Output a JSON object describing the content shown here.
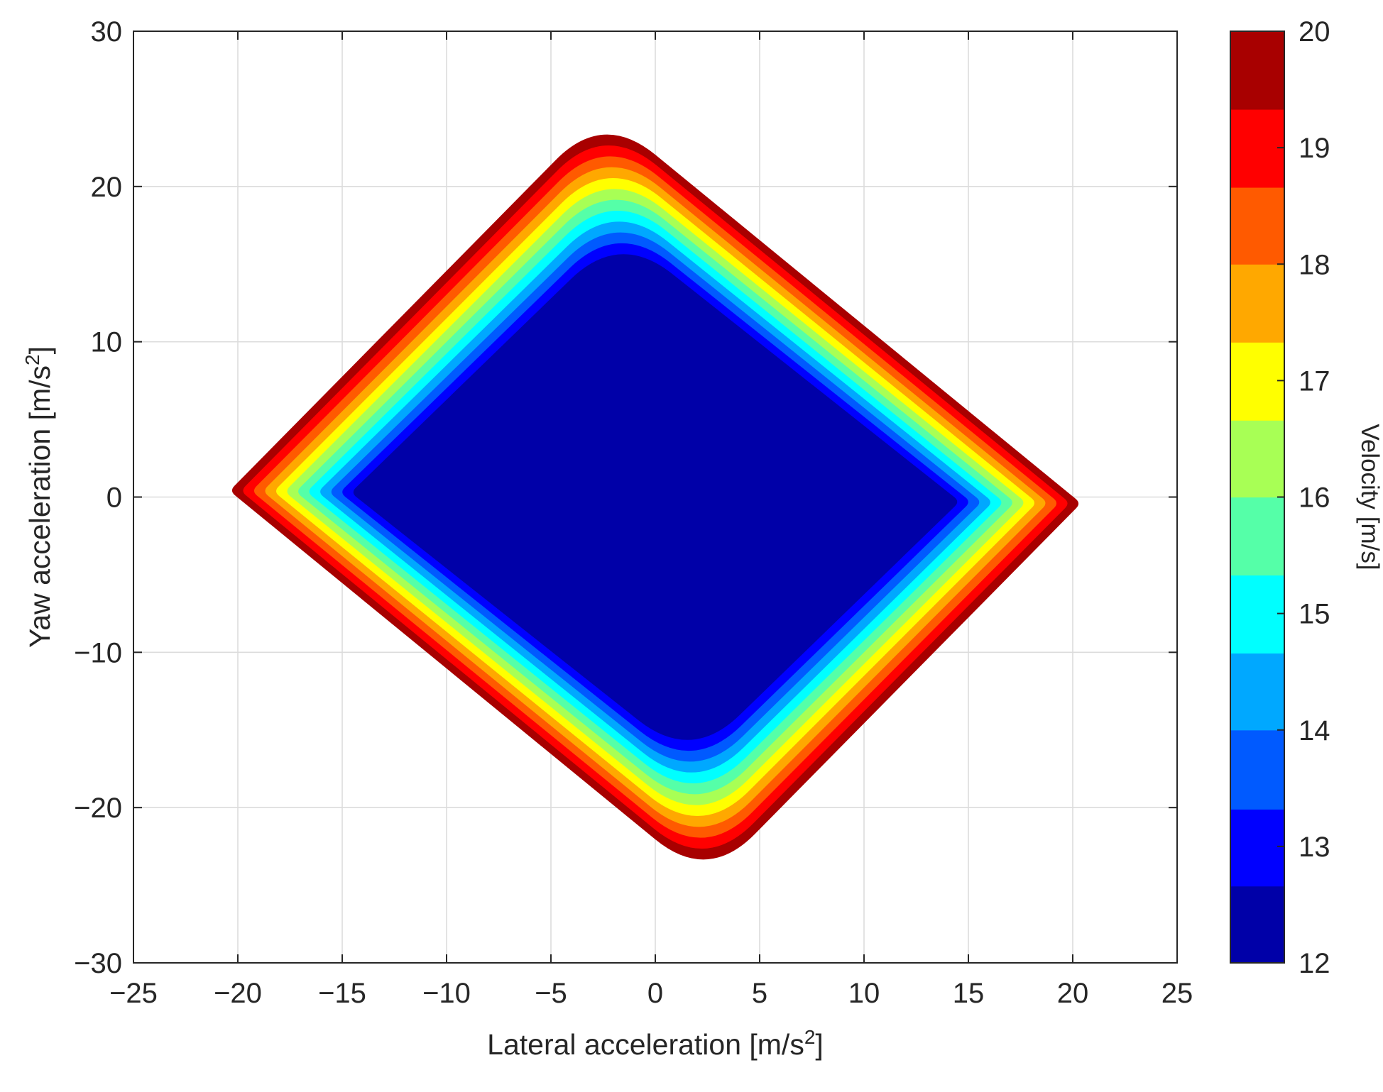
{
  "chart_data": {
    "type": "heatmap",
    "description_free": true,
    "xlabel": "Lateral acceleration [m/s",
    "xlabel_sup": "2",
    "xlabel_end": "]",
    "ylabel": "Yaw acceleration [m/s",
    "ylabel_sup": "2",
    "ylabel_end": "]",
    "xlim": [
      -25,
      25
    ],
    "ylim": [
      -30,
      30
    ],
    "x_ticks": [
      -25,
      -20,
      -15,
      -10,
      -5,
      0,
      5,
      10,
      15,
      20,
      25
    ],
    "x_tick_labels": [
      "−25",
      "−20",
      "−15",
      "−10",
      "−5",
      "0",
      "5",
      "10",
      "15",
      "20",
      "25"
    ],
    "y_ticks": [
      -30,
      -20,
      -10,
      0,
      10,
      20,
      30
    ],
    "y_tick_labels": [
      "−30",
      "−20",
      "−10",
      "0",
      "10",
      "20",
      "30"
    ],
    "grid": true,
    "colorbar": {
      "label": "Velocity [m/s]",
      "range": [
        12,
        20
      ],
      "ticks": [
        12,
        13,
        14,
        15,
        16,
        17,
        18,
        19,
        20
      ],
      "tick_labels": [
        "12",
        "13",
        "14",
        "15",
        "16",
        "17",
        "18",
        "19",
        "20"
      ],
      "levels": [
        {
          "from": 12.0,
          "to": 12.66,
          "color": "#0000a8"
        },
        {
          "from": 12.66,
          "to": 13.32,
          "color": "#0000ff"
        },
        {
          "from": 13.32,
          "to": 14.0,
          "color": "#005aff"
        },
        {
          "from": 14.0,
          "to": 14.66,
          "color": "#00a8ff"
        },
        {
          "from": 14.66,
          "to": 15.33,
          "color": "#00ffff"
        },
        {
          "from": 15.33,
          "to": 16.0,
          "color": "#55ffa8"
        },
        {
          "from": 16.0,
          "to": 16.66,
          "color": "#a8ff55"
        },
        {
          "from": 16.66,
          "to": 17.33,
          "color": "#ffff00"
        },
        {
          "from": 17.33,
          "to": 18.0,
          "color": "#ffa800"
        },
        {
          "from": 18.0,
          "to": 18.66,
          "color": "#ff5a00"
        },
        {
          "from": 18.66,
          "to": 19.33,
          "color": "#ff0000"
        },
        {
          "from": 19.33,
          "to": 20.0,
          "color": "#a80000"
        }
      ]
    },
    "region": {
      "interior_velocity": 12,
      "vertices": [
        {
          "x": -20.4,
          "y": 0.4
        },
        {
          "x": -2.5,
          "y": 24.8
        },
        {
          "x": 20.4,
          "y": -0.4
        },
        {
          "x": 2.5,
          "y": -24.8
        }
      ],
      "bands": [
        {
          "velocity": 19.6,
          "color": "#a80000"
        },
        {
          "velocity": 19.0,
          "color": "#ff0000"
        },
        {
          "velocity": 18.3,
          "color": "#ff5a00"
        },
        {
          "velocity": 17.7,
          "color": "#ffa800"
        },
        {
          "velocity": 17.0,
          "color": "#ffff00"
        },
        {
          "velocity": 16.3,
          "color": "#a8ff55"
        },
        {
          "velocity": 15.7,
          "color": "#55ffa8"
        },
        {
          "velocity": 15.0,
          "color": "#00ffff"
        },
        {
          "velocity": 14.3,
          "color": "#00a8ff"
        },
        {
          "velocity": 13.7,
          "color": "#005aff"
        },
        {
          "velocity": 13.0,
          "color": "#0000ff"
        },
        {
          "velocity": 12.0,
          "color": "#0000a8"
        }
      ]
    }
  }
}
